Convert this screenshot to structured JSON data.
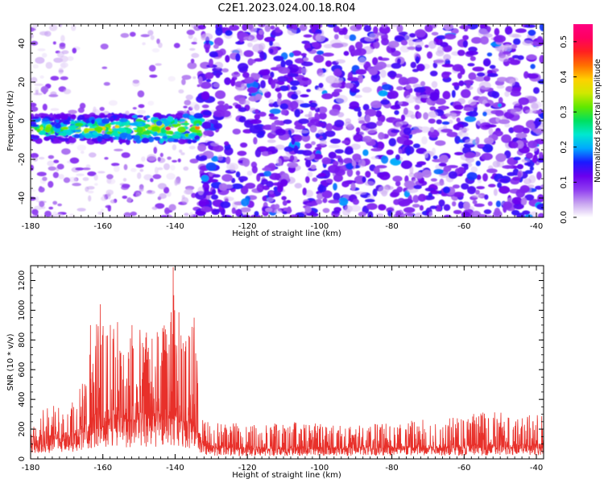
{
  "title": "C2E1.2023.024.00.18.R04",
  "chart_data": [
    {
      "type": "heatmap",
      "xlabel": "Height of straight line (km)",
      "ylabel": "Frequency (Hz)",
      "xlim": [
        -180,
        -38
      ],
      "ylim": [
        -50,
        50
      ],
      "x_ticks": [
        -180,
        -160,
        -140,
        -120,
        -100,
        -80,
        -60,
        -40
      ],
      "y_ticks": [
        -40,
        -20,
        0,
        20,
        40
      ],
      "colorbar": {
        "label": "Normalized spectral amplitude",
        "range": [
          0,
          0.55
        ],
        "ticks": [
          0.0,
          0.1,
          0.2,
          0.3,
          0.4,
          0.5
        ],
        "colors": [
          "#ffffff",
          "#c9a6f0",
          "#8f3df0",
          "#6a00ee",
          "#1a1aff",
          "#00a8ff",
          "#00e8d0",
          "#00e060",
          "#60e800",
          "#d0e800",
          "#ffd000",
          "#ff7000",
          "#ff2020",
          "#ff0060",
          "#ff0080"
        ]
      },
      "features": {
        "strong_band": {
          "x_range": [
            -180,
            -133
          ],
          "freq_center": -4,
          "freq_halfwidth": 7,
          "peak_x": -142,
          "peak_amplitude": 0.5
        },
        "noise_sparse_region": {
          "x_range": [
            -180,
            -133
          ],
          "amplitude_max": 0.08
        },
        "noise_dense_region": {
          "x_range": [
            -133,
            -38
          ],
          "amplitude_typical": 0.1,
          "amplitude_max": 0.2
        }
      },
      "grid": false
    },
    {
      "type": "line",
      "xlabel": "Height of straight line (km)",
      "ylabel": "SNR (10 * v/v)",
      "xlim": [
        -180,
        -38
      ],
      "ylim": [
        0,
        1300
      ],
      "x_ticks": [
        -180,
        -160,
        -140,
        -120,
        -100,
        -80,
        -60,
        -40
      ],
      "y_ticks": [
        0,
        200,
        400,
        600,
        800,
        1000,
        1200
      ],
      "series": [
        {
          "color": "#e8302a",
          "x": [
            -180,
            -175,
            -170,
            -165,
            -162,
            -160,
            -156,
            -152,
            -148,
            -144,
            -141,
            -140,
            -138,
            -135,
            -133,
            -132,
            -128,
            -120,
            -110,
            -100,
            -90,
            -80,
            -70,
            -60,
            -50,
            -45,
            -38
          ],
          "base": [
            120,
            130,
            140,
            180,
            240,
            260,
            250,
            240,
            250,
            260,
            270,
            260,
            250,
            230,
            120,
            70,
            70,
            65,
            65,
            65,
            68,
            70,
            72,
            75,
            78,
            80,
            80
          ],
          "peak": [
            280,
            370,
            330,
            560,
            900,
            1040,
            920,
            900,
            850,
            880,
            1000,
            1290,
            820,
            950,
            560,
            260,
            240,
            240,
            250,
            240,
            230,
            250,
            280,
            300,
            330,
            290,
            300
          ]
        }
      ],
      "grid": false
    }
  ]
}
